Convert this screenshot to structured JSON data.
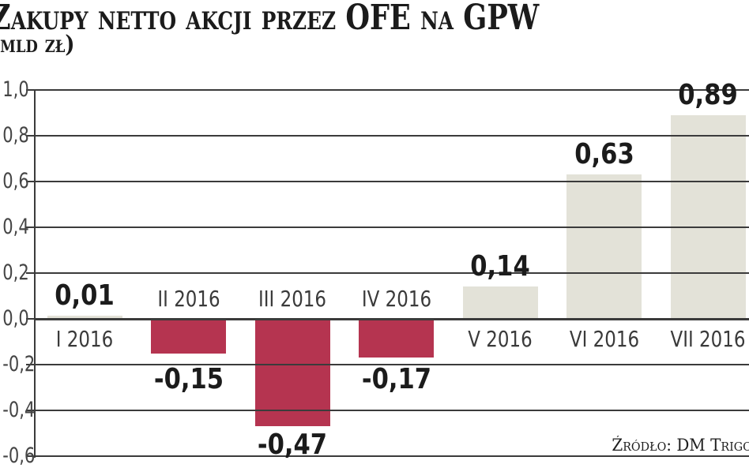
{
  "header": {
    "title": "Zakupy netto akcji przez OFE na GPW",
    "subtitle": "(mld zł)"
  },
  "footer": {
    "source": "Źródło: DM Trigo"
  },
  "colors": {
    "positive_bar": "#e3e2d8",
    "negative_bar": "#b53450",
    "grid": "#3b3b3b",
    "value_label": "#1b1b1b",
    "category_label": "#3a3a3a",
    "axis_label": "#454545",
    "background": "#ffffff"
  },
  "chart_data": {
    "type": "bar",
    "title": "Zakupy netto akcji przez OFE na GPW (mld zł)",
    "xlabel": "",
    "ylabel": "mld zł",
    "categories": [
      "I 2016",
      "II 2016",
      "III 2016",
      "IV 2016",
      "V 2016",
      "VI 2016",
      "VII 2016"
    ],
    "values": [
      0.01,
      -0.15,
      -0.47,
      -0.17,
      0.14,
      0.63,
      0.89
    ],
    "value_labels": [
      "0,01",
      "-0,15",
      "-0,47",
      "-0,17",
      "0,14",
      "0,63",
      "0,89"
    ],
    "ylim": [
      -0.6,
      1.0
    ],
    "ytick_values": [
      1.0,
      0.8,
      0.6,
      0.4,
      0.2,
      0.0,
      -0.2,
      -0.4,
      -0.6
    ],
    "ytick_labels": [
      "1,0",
      "0,8",
      "0,6",
      "0,4",
      "0,2",
      "0,0",
      "-0,2",
      "-0,4",
      "-0,6"
    ],
    "grid": true,
    "legend": null
  }
}
